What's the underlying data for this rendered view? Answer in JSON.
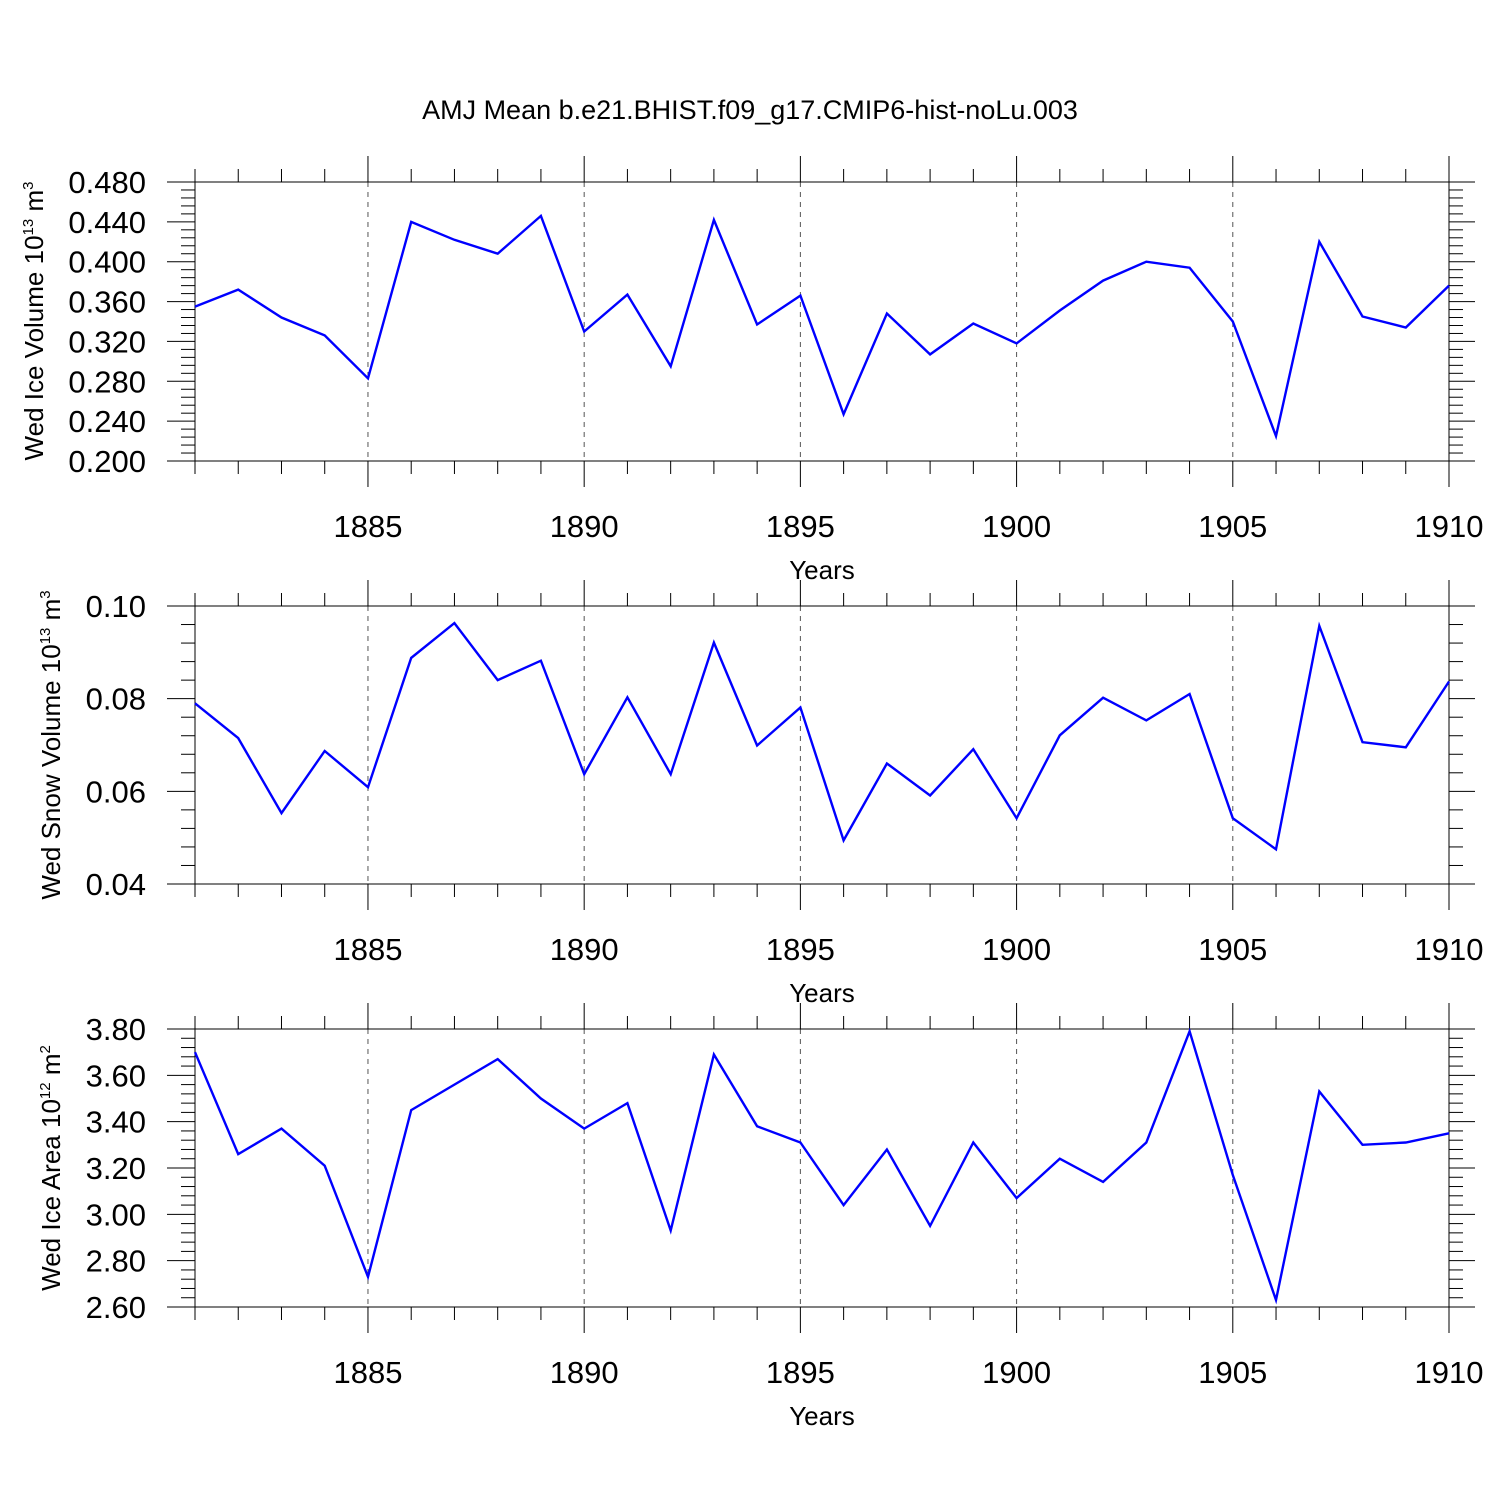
{
  "title": "AMJ Mean b.e21.BHIST.f09_g17.CMIP6-hist-noLu.003",
  "line_color": "#0000ff",
  "chart_data": [
    {
      "type": "line",
      "ylabel": "Wed Ice Volume",
      "unit": {
        "base": "10",
        "exp": "13",
        "unit": "m",
        "unit_exp": "3"
      },
      "xlabel": "Years",
      "x": [
        1881,
        1882,
        1883,
        1884,
        1885,
        1886,
        1887,
        1888,
        1889,
        1890,
        1891,
        1892,
        1893,
        1894,
        1895,
        1896,
        1897,
        1898,
        1899,
        1900,
        1901,
        1902,
        1903,
        1904,
        1905,
        1906,
        1907,
        1908,
        1909,
        1910
      ],
      "series": [
        {
          "values": [
            0.355,
            0.372,
            0.344,
            0.326,
            0.283,
            0.44,
            0.422,
            0.408,
            0.446,
            0.33,
            0.367,
            0.295,
            0.442,
            0.337,
            0.366,
            0.247,
            0.348,
            0.307,
            0.338,
            0.318,
            0.351,
            0.381,
            0.4,
            0.394,
            0.34,
            0.225,
            0.42,
            0.345,
            0.334,
            0.376
          ]
        }
      ],
      "xlim": [
        1881,
        1910
      ],
      "ylim": [
        0.2,
        0.48
      ],
      "yticks": [
        "0.200",
        "0.240",
        "0.280",
        "0.320",
        "0.360",
        "0.400",
        "0.440",
        "0.480"
      ],
      "xticks": [
        "1885",
        "1890",
        "1895",
        "1900",
        "1905",
        "1910"
      ],
      "grid": "vertical dashed at major x ticks"
    },
    {
      "type": "line",
      "ylabel": "Wed Snow Volume",
      "unit": {
        "base": "10",
        "exp": "13",
        "unit": "m",
        "unit_exp": "3"
      },
      "xlabel": "Years",
      "x": [
        1881,
        1882,
        1883,
        1884,
        1885,
        1886,
        1887,
        1888,
        1889,
        1890,
        1891,
        1892,
        1893,
        1894,
        1895,
        1896,
        1897,
        1898,
        1899,
        1900,
        1901,
        1902,
        1903,
        1904,
        1905,
        1906,
        1907,
        1908,
        1909,
        1910
      ],
      "series": [
        {
          "values": [
            0.079,
            0.0715,
            0.0553,
            0.0687,
            0.0609,
            0.0888,
            0.0963,
            0.084,
            0.0882,
            0.0637,
            0.0803,
            0.0637,
            0.0921,
            0.0699,
            0.0781,
            0.0494,
            0.066,
            0.0591,
            0.0691,
            0.0542,
            0.0721,
            0.0802,
            0.0753,
            0.081,
            0.0542,
            0.0475,
            0.0957,
            0.0706,
            0.0695,
            0.0837
          ]
        }
      ],
      "xlim": [
        1881,
        1910
      ],
      "ylim": [
        0.04,
        0.1
      ],
      "yticks": [
        "0.04",
        "0.06",
        "0.08",
        "0.10"
      ],
      "xticks": [
        "1885",
        "1890",
        "1895",
        "1900",
        "1905",
        "1910"
      ],
      "grid": "vertical dashed at major x ticks"
    },
    {
      "type": "line",
      "ylabel": "Wed Ice Area",
      "unit": {
        "base": "10",
        "exp": "12",
        "unit": "m",
        "unit_exp": "2"
      },
      "xlabel": "Years",
      "x": [
        1881,
        1882,
        1883,
        1884,
        1885,
        1886,
        1887,
        1888,
        1889,
        1890,
        1891,
        1892,
        1893,
        1894,
        1895,
        1896,
        1897,
        1898,
        1899,
        1900,
        1901,
        1902,
        1903,
        1904,
        1905,
        1906,
        1907,
        1908,
        1909,
        1910
      ],
      "series": [
        {
          "values": [
            3.7,
            3.26,
            3.37,
            3.21,
            2.73,
            3.45,
            3.56,
            3.67,
            3.5,
            3.37,
            3.48,
            2.93,
            3.69,
            3.38,
            3.31,
            3.04,
            3.28,
            2.95,
            3.31,
            3.07,
            3.24,
            3.14,
            3.31,
            3.79,
            3.17,
            2.63,
            3.53,
            3.3,
            3.31,
            3.35
          ]
        }
      ],
      "xlim": [
        1881,
        1910
      ],
      "ylim": [
        2.6,
        3.8
      ],
      "yticks": [
        "2.60",
        "2.80",
        "3.00",
        "3.20",
        "3.40",
        "3.60",
        "3.80"
      ],
      "xticks": [
        "1885",
        "1890",
        "1895",
        "1900",
        "1905",
        "1910"
      ],
      "grid": "vertical dashed at major x ticks"
    }
  ]
}
